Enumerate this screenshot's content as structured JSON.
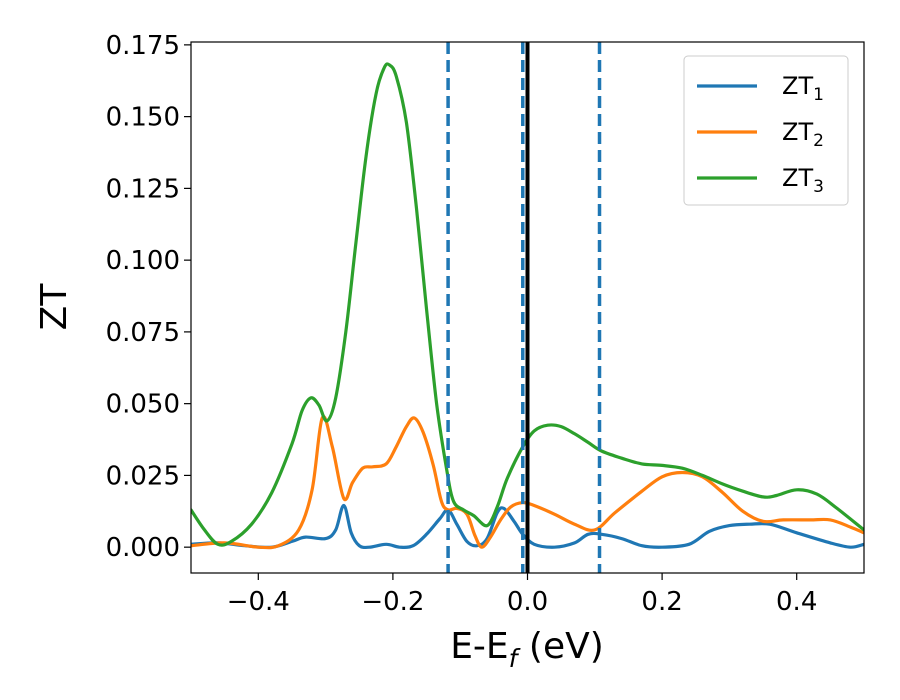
{
  "chart_data": {
    "type": "line",
    "xlabel": {
      "base": "E-E",
      "sub": "f",
      "suffix": " (eV)"
    },
    "ylabel": "ZT",
    "xlim": [
      -0.5,
      0.5
    ],
    "ylim": [
      -0.009,
      0.176
    ],
    "xticks": [
      -0.4,
      -0.2,
      0.0,
      0.2,
      0.4
    ],
    "xtick_labels": [
      "−0.4",
      "−0.2",
      "0.0",
      "0.2",
      "0.4"
    ],
    "yticks": [
      0.0,
      0.025,
      0.05,
      0.075,
      0.1,
      0.125,
      0.15,
      0.175
    ],
    "ytick_labels": [
      "0.000",
      "0.025",
      "0.050",
      "0.075",
      "0.100",
      "0.125",
      "0.150",
      "0.175"
    ],
    "grid": false,
    "legend_position": "top-right",
    "vlines": [
      {
        "x": -0.118,
        "style": "dashed",
        "color": "#1f77b4"
      },
      {
        "x": -0.007,
        "style": "dashed",
        "color": "#1f77b4"
      },
      {
        "x": 0.0,
        "style": "solid",
        "color": "#000000"
      },
      {
        "x": 0.107,
        "style": "dashed",
        "color": "#1f77b4"
      }
    ],
    "series": [
      {
        "name": {
          "base": "ZT",
          "sub": "1"
        },
        "color": "#1f77b4",
        "points": [
          [
            -0.5,
            0.001
          ],
          [
            -0.46,
            0.0015
          ],
          [
            -0.42,
            0.0005
          ],
          [
            -0.38,
            0.0
          ],
          [
            -0.35,
            0.002
          ],
          [
            -0.33,
            0.0035
          ],
          [
            -0.3,
            0.003
          ],
          [
            -0.285,
            0.006
          ],
          [
            -0.273,
            0.0145
          ],
          [
            -0.262,
            0.005
          ],
          [
            -0.25,
            0.0005
          ],
          [
            -0.235,
            0.0
          ],
          [
            -0.21,
            0.001
          ],
          [
            -0.19,
            0.0
          ],
          [
            -0.17,
            0.0005
          ],
          [
            -0.15,
            0.0045
          ],
          [
            -0.13,
            0.01
          ],
          [
            -0.118,
            0.013
          ],
          [
            -0.105,
            0.008
          ],
          [
            -0.09,
            0.002
          ],
          [
            -0.075,
            0.0005
          ],
          [
            -0.06,
            0.003
          ],
          [
            -0.045,
            0.012
          ],
          [
            -0.035,
            0.0135
          ],
          [
            -0.02,
            0.009
          ],
          [
            -0.007,
            0.0045
          ],
          [
            0.01,
            0.001
          ],
          [
            0.04,
            0.0
          ],
          [
            0.07,
            0.0015
          ],
          [
            0.09,
            0.0045
          ],
          [
            0.11,
            0.0045
          ],
          [
            0.14,
            0.003
          ],
          [
            0.17,
            0.0005
          ],
          [
            0.2,
            0.0
          ],
          [
            0.24,
            0.001
          ],
          [
            0.27,
            0.0055
          ],
          [
            0.3,
            0.0075
          ],
          [
            0.33,
            0.008
          ],
          [
            0.36,
            0.008
          ],
          [
            0.4,
            0.005
          ],
          [
            0.45,
            0.0015
          ],
          [
            0.48,
            0.0
          ],
          [
            0.5,
            0.001
          ]
        ]
      },
      {
        "name": {
          "base": "ZT",
          "sub": "2"
        },
        "color": "#ff7f0e",
        "points": [
          [
            -0.5,
            0.0005
          ],
          [
            -0.45,
            0.0015
          ],
          [
            -0.4,
            0.0
          ],
          [
            -0.37,
            0.0005
          ],
          [
            -0.34,
            0.006
          ],
          [
            -0.32,
            0.02
          ],
          [
            -0.305,
            0.045
          ],
          [
            -0.29,
            0.035
          ],
          [
            -0.273,
            0.017
          ],
          [
            -0.26,
            0.0225
          ],
          [
            -0.245,
            0.0275
          ],
          [
            -0.23,
            0.028
          ],
          [
            -0.21,
            0.029
          ],
          [
            -0.195,
            0.035
          ],
          [
            -0.18,
            0.042
          ],
          [
            -0.168,
            0.045
          ],
          [
            -0.155,
            0.04
          ],
          [
            -0.14,
            0.0285
          ],
          [
            -0.128,
            0.016
          ],
          [
            -0.118,
            0.013
          ],
          [
            -0.105,
            0.0135
          ],
          [
            -0.09,
            0.0115
          ],
          [
            -0.078,
            0.004
          ],
          [
            -0.068,
            0.0
          ],
          [
            -0.055,
            0.0035
          ],
          [
            -0.04,
            0.0095
          ],
          [
            -0.025,
            0.014
          ],
          [
            -0.007,
            0.0155
          ],
          [
            0.01,
            0.0145
          ],
          [
            0.04,
            0.0115
          ],
          [
            0.07,
            0.008
          ],
          [
            0.1,
            0.006
          ],
          [
            0.13,
            0.012
          ],
          [
            0.17,
            0.0195
          ],
          [
            0.2,
            0.0245
          ],
          [
            0.23,
            0.026
          ],
          [
            0.26,
            0.0245
          ],
          [
            0.29,
            0.019
          ],
          [
            0.32,
            0.0125
          ],
          [
            0.35,
            0.009
          ],
          [
            0.38,
            0.0095
          ],
          [
            0.42,
            0.0095
          ],
          [
            0.45,
            0.0095
          ],
          [
            0.48,
            0.007
          ],
          [
            0.5,
            0.005
          ]
        ]
      },
      {
        "name": {
          "base": "ZT",
          "sub": "3"
        },
        "color": "#2ca02c",
        "points": [
          [
            -0.5,
            0.013
          ],
          [
            -0.48,
            0.006
          ],
          [
            -0.46,
            0.001
          ],
          [
            -0.44,
            0.002
          ],
          [
            -0.41,
            0.008
          ],
          [
            -0.38,
            0.019
          ],
          [
            -0.35,
            0.036
          ],
          [
            -0.335,
            0.0475
          ],
          [
            -0.322,
            0.052
          ],
          [
            -0.31,
            0.0495
          ],
          [
            -0.298,
            0.044
          ],
          [
            -0.285,
            0.052
          ],
          [
            -0.27,
            0.075
          ],
          [
            -0.255,
            0.106
          ],
          [
            -0.24,
            0.136
          ],
          [
            -0.225,
            0.158
          ],
          [
            -0.213,
            0.167
          ],
          [
            -0.205,
            0.168
          ],
          [
            -0.195,
            0.164
          ],
          [
            -0.18,
            0.148
          ],
          [
            -0.165,
            0.118
          ],
          [
            -0.15,
            0.083
          ],
          [
            -0.135,
            0.05
          ],
          [
            -0.12,
            0.027
          ],
          [
            -0.11,
            0.016
          ],
          [
            -0.095,
            0.013
          ],
          [
            -0.08,
            0.011
          ],
          [
            -0.06,
            0.0075
          ],
          [
            -0.045,
            0.014
          ],
          [
            -0.03,
            0.024
          ],
          [
            -0.007,
            0.035
          ],
          [
            0.01,
            0.0405
          ],
          [
            0.03,
            0.0425
          ],
          [
            0.05,
            0.042
          ],
          [
            0.07,
            0.0395
          ],
          [
            0.09,
            0.0365
          ],
          [
            0.11,
            0.0335
          ],
          [
            0.14,
            0.031
          ],
          [
            0.17,
            0.029
          ],
          [
            0.2,
            0.0285
          ],
          [
            0.23,
            0.0275
          ],
          [
            0.26,
            0.025
          ],
          [
            0.29,
            0.022
          ],
          [
            0.32,
            0.0195
          ],
          [
            0.35,
            0.0175
          ],
          [
            0.37,
            0.018
          ],
          [
            0.4,
            0.02
          ],
          [
            0.43,
            0.0185
          ],
          [
            0.46,
            0.0135
          ],
          [
            0.5,
            0.006
          ]
        ]
      }
    ]
  }
}
